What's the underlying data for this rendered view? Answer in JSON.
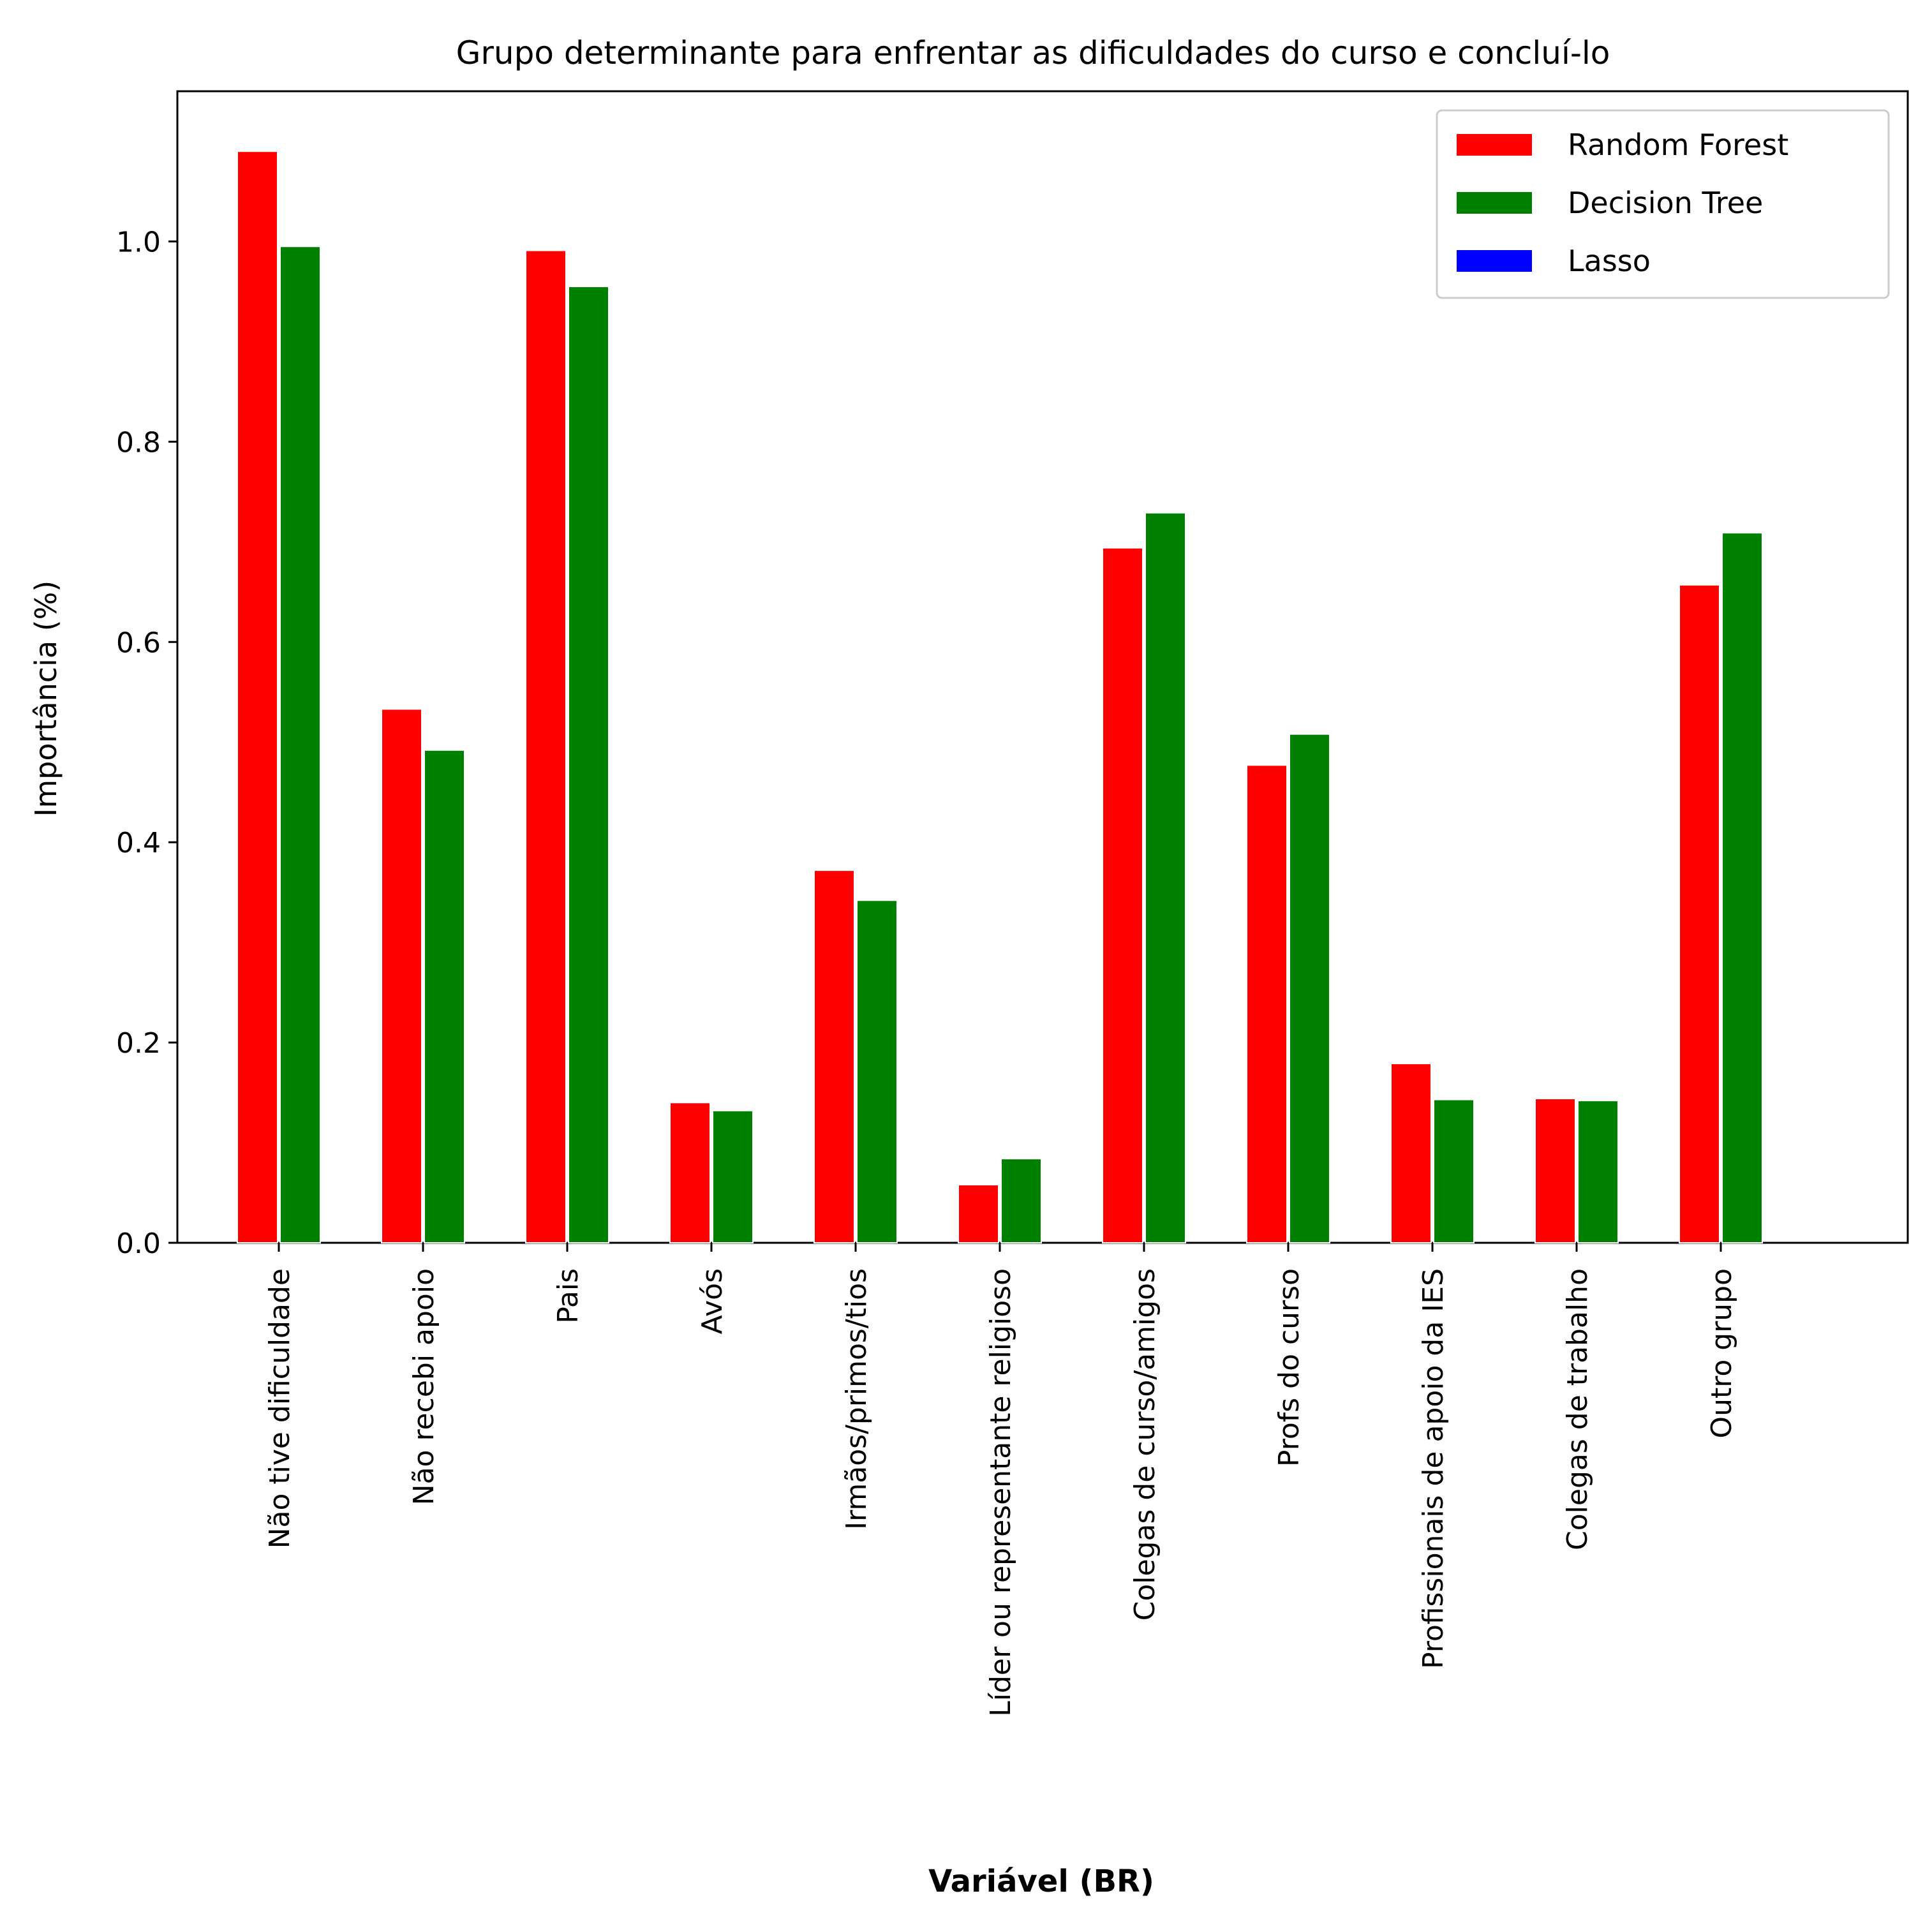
{
  "chart_data": {
    "type": "bar",
    "title": "Grupo determinante para enfrentar as dificuldades do curso e concluí-lo",
    "xlabel": "Variável (BR)",
    "ylabel": "Importância (%)",
    "ylim": [
      0,
      1.15
    ],
    "yticks": [
      "0.0",
      "0.2",
      "0.4",
      "0.6",
      "0.8",
      "1.0"
    ],
    "grid": false,
    "legend_position": "top-right",
    "categories": [
      "Não tive dificuldade",
      "Não recebi apoio",
      "Pais",
      "Avós",
      "Irmãos/primos/tios",
      "Líder ou representante religioso",
      "Colegas de curso/amigos",
      "Profs do curso",
      "Profissionais de apoio da IES",
      "Colegas de trabalho",
      "Outro grupo"
    ],
    "series": [
      {
        "name": "Random Forest",
        "color": "#ff0000",
        "values": [
          1.09,
          0.533,
          0.991,
          0.14,
          0.372,
          0.058,
          0.694,
          0.477,
          0.179,
          0.144,
          0.657
        ]
      },
      {
        "name": "Decision Tree",
        "color": "#008000",
        "values": [
          0.995,
          0.492,
          0.955,
          0.132,
          0.342,
          0.084,
          0.729,
          0.508,
          0.143,
          0.142,
          0.709
        ]
      },
      {
        "name": "Lasso",
        "color": "#0000ff",
        "values": [
          0,
          0,
          0,
          0,
          0,
          0,
          0,
          0,
          0,
          0,
          0
        ]
      }
    ]
  }
}
